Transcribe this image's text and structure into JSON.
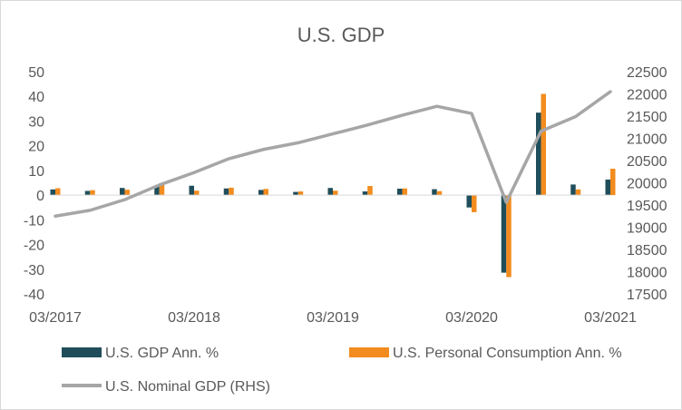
{
  "chart_data": {
    "type": "bar+line",
    "title": "U.S. GDP",
    "x_tick_labels": [
      "03/2017",
      "03/2018",
      "03/2019",
      "03/2020",
      "03/2021"
    ],
    "quarters": [
      "03/2017",
      "06/2017",
      "09/2017",
      "12/2017",
      "03/2018",
      "06/2018",
      "09/2018",
      "12/2018",
      "03/2019",
      "06/2019",
      "09/2019",
      "12/2019",
      "03/2020",
      "06/2020",
      "09/2020",
      "12/2020",
      "03/2021"
    ],
    "y_left": {
      "min": -40,
      "max": 50,
      "step": 10,
      "ticks": [
        "50",
        "40",
        "30",
        "20",
        "10",
        "0",
        "-10",
        "-20",
        "-30",
        "-40"
      ]
    },
    "y_right": {
      "min": 17500,
      "max": 22500,
      "step": 500,
      "ticks": [
        "22500",
        "22000",
        "21500",
        "21000",
        "20500",
        "20000",
        "19500",
        "19000",
        "18500",
        "18000",
        "17500"
      ]
    },
    "series": [
      {
        "name": "U.S. GDP Ann. %",
        "kind": "bar",
        "axis": "left",
        "color": "#1f4e5a",
        "values": [
          2.3,
          1.7,
          2.9,
          3.9,
          3.8,
          2.7,
          2.1,
          1.3,
          2.9,
          1.5,
          2.6,
          2.4,
          -5.0,
          -31.4,
          33.4,
          4.3,
          6.3
        ]
      },
      {
        "name": "U.S. Personal Consumption Ann. %",
        "kind": "bar",
        "axis": "left",
        "color": "#f28c1e",
        "values": [
          2.8,
          2.0,
          2.2,
          4.5,
          1.8,
          3.0,
          2.5,
          1.5,
          1.8,
          3.7,
          2.7,
          1.6,
          -6.9,
          -33.2,
          41.0,
          2.3,
          10.7
        ]
      },
      {
        "name": "U.S. Nominal GDP (RHS)",
        "kind": "line",
        "axis": "right",
        "color": "#a6a6a6",
        "values": [
          19250,
          19380,
          19620,
          19950,
          20230,
          20540,
          20750,
          20900,
          21100,
          21300,
          21520,
          21720,
          21560,
          19560,
          21160,
          21490,
          22050
        ]
      }
    ],
    "legend_position": "bottom",
    "grid": false
  }
}
